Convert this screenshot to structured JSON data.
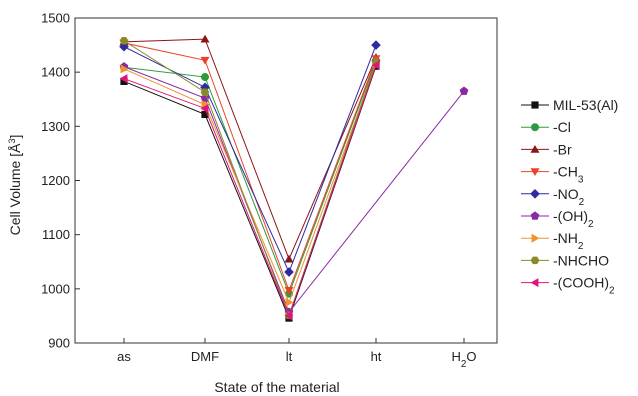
{
  "chart_data": {
    "type": "line",
    "title": "",
    "xlabel": "State of the material",
    "ylabel": "Cell Volume [Å³]",
    "ylabel_parts": {
      "main": "Cell Volume [Å",
      "sup": "3",
      "end": "]"
    },
    "categories": [
      "as",
      "DMF",
      "lt",
      "ht",
      "H₂O"
    ],
    "category_labels": [
      {
        "main": "as",
        "sub": ""
      },
      {
        "main": "DMF",
        "sub": ""
      },
      {
        "main": "lt",
        "sub": ""
      },
      {
        "main": "ht",
        "sub": ""
      },
      {
        "main": "H",
        "sub": "2",
        "end": "O"
      }
    ],
    "ylim": [
      900,
      1500
    ],
    "yticks": [
      900,
      1000,
      1100,
      1200,
      1300,
      1400,
      1500
    ],
    "grid": false,
    "legend_position": "right",
    "series": [
      {
        "name": "MIL-53(Al)",
        "label": {
          "main": "MIL-53(Al)",
          "sub": "",
          "end": ""
        },
        "color": "#111111",
        "marker": "square",
        "values": [
          1383,
          1322,
          946,
          1411,
          null
        ]
      },
      {
        "name": "-Cl",
        "label": {
          "main": "-Cl",
          "sub": "",
          "end": ""
        },
        "color": "#2e9a3e",
        "marker": "circle",
        "values": [
          1409,
          1391,
          991,
          1421,
          null
        ]
      },
      {
        "name": "-Br",
        "label": {
          "main": "-Br",
          "sub": "",
          "end": ""
        },
        "color": "#8b1414",
        "marker": "triangle-up",
        "values": [
          1456,
          1461,
          1055,
          1427,
          null
        ]
      },
      {
        "name": "-CH₃",
        "label": {
          "main": "-CH",
          "sub": "3",
          "end": ""
        },
        "color": "#e8432a",
        "marker": "triangle-down",
        "values": [
          1454,
          1422,
          997,
          1425,
          null
        ]
      },
      {
        "name": "-NO₂",
        "label": {
          "main": "-NO",
          "sub": "2",
          "end": ""
        },
        "color": "#2e2ba0",
        "marker": "diamond",
        "values": [
          1447,
          1372,
          1031,
          1450,
          null
        ]
      },
      {
        "name": "-(OH)₂",
        "label": {
          "main": "-(OH)",
          "sub": "2",
          "end": ""
        },
        "color": "#8a2aa3",
        "marker": "pentagon",
        "values": [
          1410,
          1352,
          957,
          null,
          1365
        ]
      },
      {
        "name": "-NH₂",
        "label": {
          "main": "-NH",
          "sub": "2",
          "end": ""
        },
        "color": "#f0922e",
        "marker": "triangle-right",
        "values": [
          1406,
          1340,
          975,
          1415,
          null
        ]
      },
      {
        "name": "-NHCHO",
        "label": {
          "main": "-NHCHO",
          "sub": "",
          "end": ""
        },
        "color": "#8a8a2a",
        "marker": "hexagon",
        "values": [
          1458,
          1363,
          951,
          1419,
          null
        ]
      },
      {
        "name": "-(COOH)₂",
        "label": {
          "main": "-(COOH)",
          "sub": "2",
          "end": ""
        },
        "color": "#e0157a",
        "marker": "triangle-left",
        "values": [
          1388,
          1333,
          950,
          1413,
          null
        ]
      }
    ]
  }
}
